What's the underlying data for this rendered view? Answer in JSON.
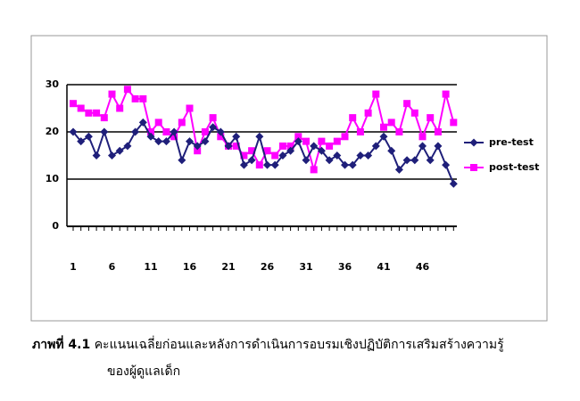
{
  "chart_data": {
    "type": "line",
    "categories": [
      "1",
      null,
      null,
      null,
      null,
      "6",
      null,
      null,
      null,
      null,
      "11",
      null,
      null,
      null,
      null,
      "16",
      null,
      null,
      null,
      null,
      "21",
      null,
      null,
      null,
      null,
      "26",
      null,
      null,
      null,
      null,
      "31",
      null,
      null,
      null,
      null,
      "36",
      null,
      null,
      null,
      null,
      "41",
      null,
      null,
      null,
      null,
      "46",
      null,
      null,
      null,
      null
    ],
    "series": [
      {
        "name": "pre-test",
        "color": "#1f1f7a",
        "marker": "diamond",
        "values": [
          20,
          18,
          19,
          15,
          20,
          15,
          16,
          17,
          20,
          22,
          19,
          18,
          18,
          20,
          14,
          18,
          17,
          18,
          21,
          20,
          17,
          19,
          13,
          14,
          19,
          13,
          13,
          15,
          16,
          18,
          14,
          17,
          16,
          14,
          15,
          13,
          13,
          15,
          15,
          17,
          19,
          16,
          12,
          14,
          14,
          17,
          14,
          17,
          13,
          9
        ]
      },
      {
        "name": "post-test",
        "color": "#ff00ff",
        "marker": "square",
        "values": [
          26,
          25,
          24,
          24,
          23,
          28,
          25,
          29,
          27,
          27,
          20,
          22,
          20,
          19,
          22,
          25,
          16,
          20,
          23,
          19,
          17,
          17,
          15,
          16,
          13,
          16,
          15,
          17,
          17,
          19,
          18,
          12,
          18,
          17,
          18,
          19,
          23,
          20,
          24,
          28,
          21,
          22,
          20,
          26,
          24,
          19,
          23,
          20,
          28,
          22
        ]
      }
    ],
    "ylim": [
      0,
      30
    ],
    "yticks": [
      0,
      10,
      20,
      30
    ],
    "grid": true,
    "legend": "right",
    "caption": {
      "label": "ภาพที่ 4.1",
      "lines": [
        "คะแนนเฉลี่ยก่อนและหลังการดำเนินการอบรมเชิงปฏิบัติการเสริมสร้างความรู้",
        "ของผู้ดูแลเด็ก"
      ]
    }
  }
}
